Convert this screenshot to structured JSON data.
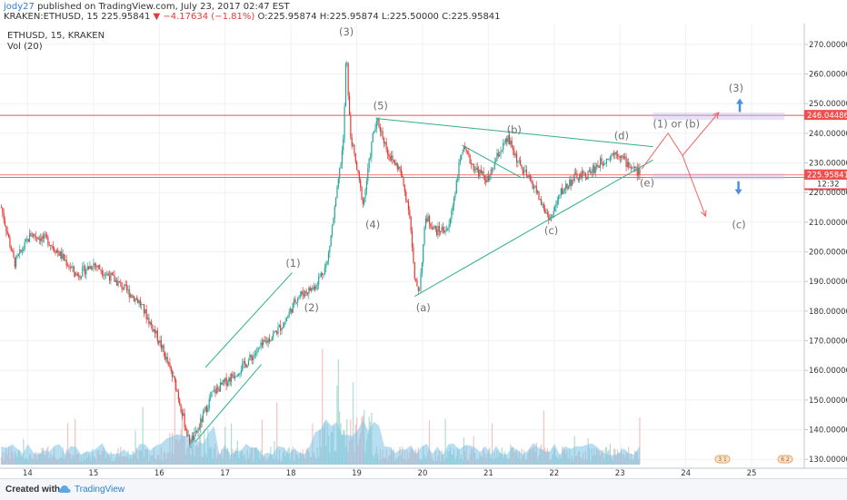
{
  "header": {
    "author": "jody27",
    "published": "published on TradingView.com, July 23, 2017 02:47 EST",
    "quote_symbol": "KRAKEN:ETHUSD, 15",
    "quote_last": "225.95841",
    "quote_change": "▼ −4.17634 (−1.81%)",
    "quote_ohlc": "O:225.95874 H:225.95874 L:225.50000 C:225.95841"
  },
  "legend": {
    "symbol": "ETHUSD, 15, KRAKEN",
    "volume": "Vol (20)"
  },
  "footer": {
    "created_with": "Created with",
    "brand": "TradingView"
  },
  "colors": {
    "up": "#26a69a",
    "down": "#e53935",
    "trend": "#2db08a",
    "hline": "#ef4f4f",
    "arrow_red": "#f06262",
    "arrow_blue": "#4a90e2",
    "volume": "#7ec3e8",
    "label": "#707070"
  },
  "chart_data": {
    "type": "candlestick",
    "x_ticks": [
      "14",
      "15",
      "16",
      "17",
      "18",
      "19",
      "20",
      "21",
      "22",
      "23",
      "24",
      "25"
    ],
    "y_ticks": [
      "270.00000",
      "260.00000",
      "250.00000",
      "240.00000",
      "230.00000",
      "220.00000",
      "210.00000",
      "200.00000",
      "190.00000",
      "180.00000",
      "170.00000",
      "160.00000",
      "150.00000",
      "140.00000",
      "130.00000"
    ],
    "y_range": [
      127,
      277
    ],
    "x_range": [
      13.58,
      25.8
    ],
    "price_path": [
      [
        13.6,
        215
      ],
      [
        13.8,
        196
      ],
      [
        14.05,
        206
      ],
      [
        14.3,
        204
      ],
      [
        14.5,
        199
      ],
      [
        14.75,
        192
      ],
      [
        15.0,
        196
      ],
      [
        15.35,
        190
      ],
      [
        15.7,
        183
      ],
      [
        16.0,
        170
      ],
      [
        16.25,
        155
      ],
      [
        16.45,
        136
      ],
      [
        16.55,
        138
      ],
      [
        16.8,
        152
      ],
      [
        17.1,
        158
      ],
      [
        17.3,
        162
      ],
      [
        17.55,
        168
      ],
      [
        17.9,
        176
      ],
      [
        18.1,
        185
      ],
      [
        18.35,
        188
      ],
      [
        18.55,
        196
      ],
      [
        18.7,
        220
      ],
      [
        18.8,
        238
      ],
      [
        18.84,
        268
      ],
      [
        18.9,
        240
      ],
      [
        19.0,
        228
      ],
      [
        19.1,
        216
      ],
      [
        19.25,
        240
      ],
      [
        19.32,
        244
      ],
      [
        19.5,
        232
      ],
      [
        19.65,
        228
      ],
      [
        19.8,
        214
      ],
      [
        19.88,
        190
      ],
      [
        19.95,
        187
      ],
      [
        20.05,
        212
      ],
      [
        20.2,
        207
      ],
      [
        20.4,
        208
      ],
      [
        20.6,
        235
      ],
      [
        20.8,
        228
      ],
      [
        21.0,
        224
      ],
      [
        21.15,
        233
      ],
      [
        21.3,
        238
      ],
      [
        21.5,
        228
      ],
      [
        21.7,
        222
      ],
      [
        21.85,
        214
      ],
      [
        21.95,
        211
      ],
      [
        22.1,
        220
      ],
      [
        22.3,
        225
      ],
      [
        22.5,
        226
      ],
      [
        22.7,
        230
      ],
      [
        22.95,
        234
      ],
      [
        23.1,
        230
      ],
      [
        23.3,
        226.5
      ]
    ],
    "horizontal_levels": [
      {
        "price": 246.04486,
        "label": "246.04486",
        "color": "#ef4f4f"
      },
      {
        "price": 225.95841,
        "label": "225.95841",
        "color": "#ef4f4f"
      },
      {
        "price": 225.12385,
        "label": "225.12385",
        "color": "#ef4f4f"
      }
    ],
    "countdown_label": "12:32",
    "wave_labels": [
      {
        "text": "(1)",
        "x": 17.92,
        "y": 195
      },
      {
        "text": "(2)",
        "x": 18.2,
        "y": 180
      },
      {
        "text": "(3)",
        "x": 18.73,
        "y": 273
      },
      {
        "text": "(4)",
        "x": 19.13,
        "y": 208
      },
      {
        "text": "(5)",
        "x": 19.25,
        "y": 248
      },
      {
        "text": "(a)",
        "x": 19.9,
        "y": 180
      },
      {
        "text": "(b)",
        "x": 21.28,
        "y": 240
      },
      {
        "text": "(c)",
        "x": 21.85,
        "y": 206
      },
      {
        "text": "(d)",
        "x": 22.91,
        "y": 238
      },
      {
        "text": "(e)",
        "x": 23.3,
        "y": 222
      },
      {
        "text": "(1) or (b)",
        "x": 23.5,
        "y": 242
      },
      {
        "text": "(3)",
        "x": 24.65,
        "y": 254
      },
      {
        "text": "(c)",
        "x": 24.7,
        "y": 208
      }
    ],
    "trend_lines": [
      [
        [
          16.55,
          136
        ],
        [
          17.55,
          162
        ]
      ],
      [
        [
          16.7,
          161
        ],
        [
          18.02,
          193
        ]
      ],
      [
        [
          19.29,
          245
        ],
        [
          23.5,
          235.5
        ]
      ],
      [
        [
          19.88,
          185
        ],
        [
          23.5,
          231
        ]
      ],
      [
        [
          20.6,
          236
        ],
        [
          21.5,
          225
        ]
      ]
    ],
    "projections": [
      {
        "path": [
          [
            23.33,
            228
          ],
          [
            23.73,
            240
          ],
          [
            23.95,
            232.5
          ],
          [
            24.5,
            247
          ]
        ],
        "color": "#f06262"
      },
      {
        "path": [
          [
            23.95,
            232.5
          ],
          [
            24.3,
            212
          ]
        ],
        "color": "#f06262"
      }
    ],
    "blue_arrows": [
      {
        "x": 24.82,
        "y": 249,
        "direction": "up"
      },
      {
        "x": 24.8,
        "y": 222,
        "direction": "down"
      }
    ],
    "zones": [
      {
        "from_x": 23.5,
        "to_x": 25.5,
        "top": 247,
        "bottom": 244.5
      },
      {
        "from_x": 23.5,
        "to_x": 25.5,
        "top": 226.5,
        "bottom": 224.5
      }
    ]
  }
}
